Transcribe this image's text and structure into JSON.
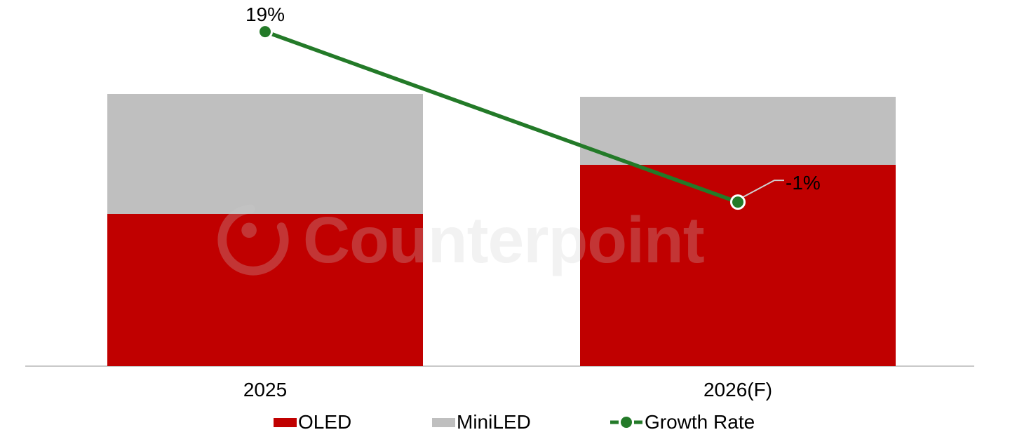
{
  "watermark": {
    "text": "Counterpoint"
  },
  "chart_data": {
    "type": "bar",
    "subtype": "stacked-column-with-growth-line",
    "title": "",
    "categories": [
      "2025",
      "2026(F)"
    ],
    "stacked": true,
    "grid": false,
    "y_axis_visible": false,
    "legend_position": "bottom",
    "baseline_color": "#C9C9C9",
    "series": [
      {
        "name": "OLED",
        "role": "bar",
        "color": "#C00000",
        "values": [
          56,
          74
        ]
      },
      {
        "name": "MiniLED",
        "role": "bar",
        "color": "#BFBFBF",
        "values": [
          44,
          25
        ]
      },
      {
        "name": "Growth Rate",
        "role": "line",
        "color": "#237A28",
        "values": [
          19,
          -1
        ],
        "labels": [
          "19%",
          "-1%"
        ]
      }
    ],
    "value_units": "index, 2025 total = 100 (segment sizes estimated from bar heights)"
  }
}
